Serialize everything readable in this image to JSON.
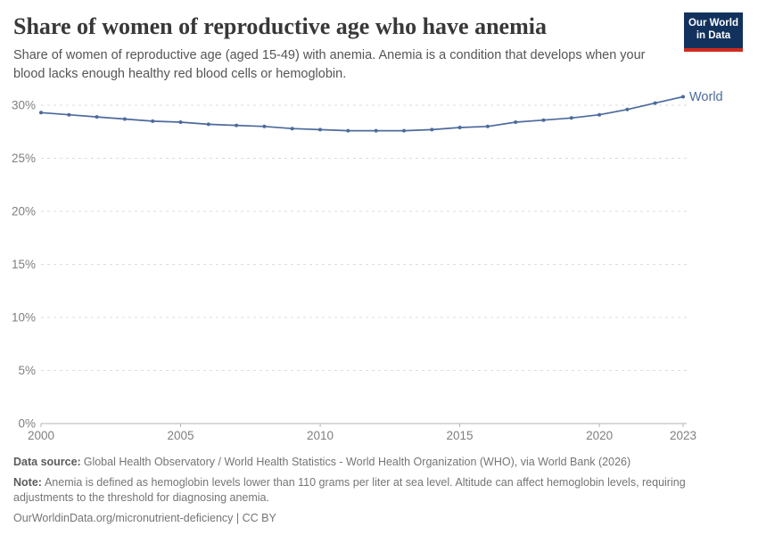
{
  "header": {
    "title": "Share of women of reproductive age who have anemia",
    "subtitle": "Share of women of reproductive age (aged 15-49) with anemia. Anemia is a condition that develops when your blood lacks enough healthy red blood cells or hemoglobin.",
    "logo": {
      "line1": "Our World",
      "line2": "in Data",
      "bg_color": "#12325D",
      "bar_color": "#CE2A1E"
    }
  },
  "chart_data": {
    "type": "line",
    "title": "Share of women of reproductive age who have anemia",
    "xlabel": "",
    "ylabel": "",
    "x": [
      2000,
      2001,
      2002,
      2003,
      2004,
      2005,
      2006,
      2007,
      2008,
      2009,
      2010,
      2011,
      2012,
      2013,
      2014,
      2015,
      2016,
      2017,
      2018,
      2019,
      2020,
      2021,
      2022,
      2023
    ],
    "series": [
      {
        "name": "World",
        "color": "#4C6A9C",
        "values": [
          29.3,
          29.1,
          28.9,
          28.7,
          28.5,
          28.4,
          28.2,
          28.1,
          28.0,
          27.8,
          27.7,
          27.6,
          27.6,
          27.6,
          27.7,
          27.9,
          28.0,
          28.4,
          28.6,
          28.8,
          29.1,
          29.6,
          30.2,
          30.8
        ]
      }
    ],
    "xlim": [
      2000,
      2023
    ],
    "ylim": [
      0,
      30
    ],
    "xticks": [
      2000,
      2005,
      2010,
      2015,
      2020,
      2023
    ],
    "yticks": [
      0,
      5,
      10,
      15,
      20,
      25,
      30
    ],
    "ytick_suffix": "%",
    "grid": "horizontal-dashed",
    "legend": "end-of-line-label",
    "colors": {
      "gridline": "#dcdcdc",
      "axis": "#b3b3b3",
      "tick_label": "#7f7f7f"
    }
  },
  "footer": {
    "data_source_label": "Data source:",
    "data_source_text": "Global Health Observatory / World Health Statistics - World Health Organization (WHO), via World Bank (2026)",
    "note_label": "Note:",
    "note_text": "Anemia is defined as hemoglobin levels lower than 110 grams per liter at sea level. Altitude can affect hemoglobin levels, requiring adjustments to the threshold for diagnosing anemia.",
    "citation": "OurWorldinData.org/micronutrient-deficiency | CC BY"
  }
}
